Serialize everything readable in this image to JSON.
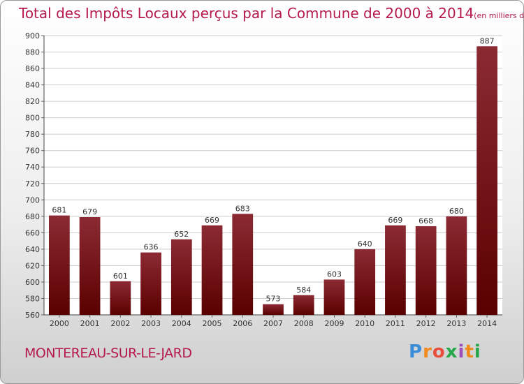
{
  "title": {
    "main": "Total des Impôts Locaux perçus par la Commune de 2000 à 2014",
    "unit": "(en milliers d'€)"
  },
  "commune": "MONTEREAU-SUR-LE-JARD",
  "logo": {
    "text": "Proxiti"
  },
  "colors": {
    "title": "#b5194d",
    "bar_top": "#8b2a33",
    "bar_bottom": "#5a0000",
    "grid": "#cccccc"
  },
  "chart_data": {
    "type": "bar",
    "title": "Total des Impôts Locaux perçus par la Commune de 2000 à 2014",
    "subtitle": "(en milliers d'€)",
    "xlabel": "",
    "ylabel": "",
    "categories": [
      "2000",
      "2001",
      "2002",
      "2003",
      "2004",
      "2005",
      "2006",
      "2007",
      "2008",
      "2009",
      "2010",
      "2011",
      "2012",
      "2013",
      "2014"
    ],
    "values": [
      681,
      679,
      601,
      636,
      652,
      669,
      683,
      573,
      584,
      603,
      640,
      669,
      668,
      680,
      887
    ],
    "ylim": [
      560,
      900
    ],
    "yticks": [
      560,
      580,
      600,
      620,
      640,
      660,
      680,
      700,
      720,
      740,
      760,
      780,
      800,
      820,
      840,
      860,
      880,
      900
    ],
    "grid": true,
    "data_labels": true
  }
}
